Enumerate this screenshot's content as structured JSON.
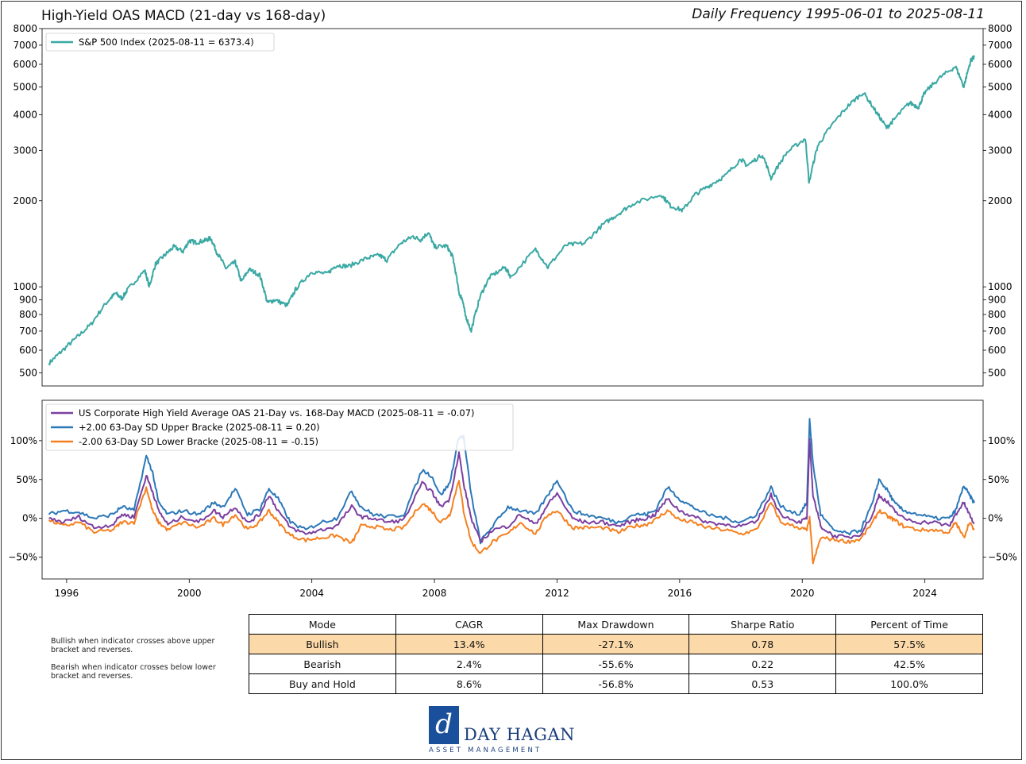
{
  "header": {
    "title": "High-Yield OAS MACD (21-day vs 168-day)",
    "subtitle": "Daily Frequency 1995-06-01 to 2025-08-11"
  },
  "chart_data": [
    {
      "type": "line",
      "scale": "log",
      "ylim": [
        450,
        8000
      ],
      "y_ticks": [
        500,
        600,
        700,
        800,
        900,
        1000,
        2000,
        3000,
        4000,
        5000,
        6000,
        7000,
        8000
      ],
      "xlim": [
        1995.2,
        2025.9
      ],
      "legend_position": "top-left",
      "color": "#3aa8a3",
      "series": [
        {
          "name": "S&P 500 Index (2025-08-11 = 6373.4)",
          "x": [
            1995.42,
            1995.8,
            1996.3,
            1996.8,
            1997.3,
            1997.6,
            1997.8,
            1998.0,
            1998.55,
            1998.7,
            1998.9,
            1999.2,
            1999.5,
            1999.8,
            2000.0,
            2000.2,
            2000.5,
            2000.7,
            2000.9,
            2001.2,
            2001.5,
            2001.7,
            2001.95,
            2002.3,
            2002.55,
            2002.8,
            2003.2,
            2003.5,
            2004.0,
            2004.5,
            2004.8,
            2005.2,
            2005.8,
            2006.2,
            2006.45,
            2006.9,
            2007.3,
            2007.55,
            2007.8,
            2008.0,
            2008.4,
            2008.6,
            2008.8,
            2008.92,
            2009.0,
            2009.2,
            2009.5,
            2009.8,
            2010.3,
            2010.5,
            2011.3,
            2011.7,
            2012.3,
            2012.9,
            2013.5,
            2014.0,
            2014.5,
            2015.4,
            2015.7,
            2016.1,
            2016.5,
            2017.0,
            2017.5,
            2018.0,
            2018.2,
            2018.7,
            2018.98,
            2019.5,
            2020.1,
            2020.22,
            2020.5,
            2020.9,
            2021.5,
            2021.99,
            2022.4,
            2022.75,
            2023.0,
            2023.5,
            2023.8,
            2024.0,
            2024.5,
            2025.0,
            2025.27,
            2025.5,
            2025.61
          ],
          "y": [
            540,
            590,
            660,
            740,
            880,
            950,
            910,
            980,
            1140,
            1000,
            1200,
            1290,
            1380,
            1330,
            1450,
            1430,
            1450,
            1480,
            1320,
            1160,
            1220,
            1040,
            1150,
            1100,
            880,
            900,
            860,
            990,
            1130,
            1110,
            1190,
            1180,
            1260,
            1290,
            1240,
            1420,
            1500,
            1460,
            1550,
            1380,
            1390,
            1270,
            950,
            900,
            800,
            700,
            930,
            1080,
            1170,
            1080,
            1350,
            1170,
            1400,
            1420,
            1650,
            1800,
            1960,
            2100,
            1920,
            1850,
            2100,
            2270,
            2450,
            2800,
            2650,
            2900,
            2400,
            2950,
            3300,
            2300,
            3100,
            3600,
            4300,
            4780,
            4100,
            3600,
            3850,
            4400,
            4250,
            4780,
            5400,
            5900,
            5000,
            6200,
            6373
          ]
        }
      ]
    },
    {
      "type": "line",
      "ylim": [
        -0.78,
        1.52
      ],
      "y_ticks": [
        -0.5,
        0,
        0.5,
        1.0
      ],
      "y_tick_labels": [
        "−50%",
        "0%",
        "50%",
        "100%"
      ],
      "xlim": [
        1995.2,
        2025.9
      ],
      "x_ticks": [
        1996,
        2000,
        2004,
        2008,
        2012,
        2016,
        2020,
        2024
      ],
      "legend_position": "top-left",
      "series": [
        {
          "name": "US Corporate High Yield Average OAS 21-Day vs. 168-Day MACD (2025-08-11 = -0.07)",
          "color": "#7b3fa0",
          "x": [
            1995.42,
            1995.9,
            1996.4,
            1996.9,
            1997.5,
            1997.8,
            1998.2,
            1998.6,
            1998.8,
            1999.0,
            1999.3,
            1999.8,
            2000.3,
            2000.8,
            2001.1,
            2001.5,
            2001.9,
            2002.3,
            2002.6,
            2002.9,
            2003.3,
            2003.8,
            2004.3,
            2004.8,
            2005.3,
            2005.6,
            2006.0,
            2006.5,
            2007.0,
            2007.6,
            2007.9,
            2008.2,
            2008.5,
            2008.8,
            2008.95,
            2009.2,
            2009.5,
            2009.9,
            2010.4,
            2010.8,
            2011.3,
            2011.7,
            2012.0,
            2012.5,
            2012.9,
            2013.5,
            2014.0,
            2014.5,
            2014.9,
            2015.2,
            2015.6,
            2016.0,
            2016.4,
            2016.9,
            2017.5,
            2018.0,
            2018.5,
            2018.98,
            2019.3,
            2019.9,
            2020.15,
            2020.24,
            2020.35,
            2020.6,
            2021.0,
            2021.5,
            2021.9,
            2022.3,
            2022.5,
            2022.8,
            2023.0,
            2023.3,
            2023.8,
            2024.3,
            2024.8,
            2025.0,
            2025.27,
            2025.45,
            2025.61
          ],
          "y": [
            0.0,
            -0.05,
            0.02,
            -0.12,
            -0.08,
            0.05,
            0.02,
            0.55,
            0.35,
            0.1,
            -0.08,
            0.02,
            -0.05,
            0.1,
            0.02,
            0.15,
            -0.06,
            0.05,
            0.3,
            0.1,
            -0.12,
            -0.2,
            -0.15,
            -0.1,
            0.15,
            0.02,
            0.0,
            -0.05,
            -0.02,
            0.45,
            0.35,
            0.15,
            0.25,
            0.85,
            0.45,
            0.0,
            -0.3,
            -0.15,
            -0.1,
            0.05,
            -0.08,
            0.18,
            0.32,
            0.0,
            -0.05,
            -0.05,
            -0.1,
            -0.03,
            0.0,
            0.05,
            0.25,
            0.1,
            0.03,
            -0.05,
            -0.08,
            -0.1,
            -0.05,
            0.3,
            0.05,
            -0.05,
            0.0,
            1.0,
            0.3,
            -0.1,
            -0.22,
            -0.25,
            -0.2,
            0.05,
            0.3,
            0.2,
            0.1,
            0.0,
            -0.05,
            -0.05,
            -0.1,
            0.05,
            0.2,
            0.05,
            -0.07
          ]
        },
        {
          "name": "+2.00 63-Day SD Upper Bracke (2025-08-11 = 0.20)",
          "color": "#2b78b8",
          "x": [
            1995.42,
            1995.9,
            1996.4,
            1996.9,
            1997.5,
            1997.8,
            1998.2,
            1998.6,
            1998.8,
            1999.0,
            1999.3,
            1999.8,
            2000.3,
            2000.8,
            2001.1,
            2001.5,
            2001.9,
            2002.3,
            2002.6,
            2002.9,
            2003.3,
            2003.8,
            2004.3,
            2004.8,
            2005.3,
            2005.6,
            2006.0,
            2006.5,
            2007.0,
            2007.6,
            2007.9,
            2008.2,
            2008.5,
            2008.8,
            2008.95,
            2009.2,
            2009.5,
            2009.9,
            2010.4,
            2010.8,
            2011.3,
            2011.7,
            2012.0,
            2012.5,
            2012.9,
            2013.5,
            2014.0,
            2014.5,
            2014.9,
            2015.2,
            2015.6,
            2016.0,
            2016.4,
            2016.9,
            2017.5,
            2018.0,
            2018.5,
            2018.98,
            2019.3,
            2019.9,
            2020.15,
            2020.24,
            2020.35,
            2020.6,
            2021.0,
            2021.5,
            2021.9,
            2022.3,
            2022.5,
            2022.8,
            2023.0,
            2023.3,
            2023.8,
            2024.3,
            2024.8,
            2025.0,
            2025.27,
            2025.45,
            2025.61
          ],
          "y": [
            0.05,
            0.1,
            0.08,
            0.0,
            0.05,
            0.15,
            0.1,
            0.8,
            0.6,
            0.2,
            0.05,
            0.1,
            0.05,
            0.2,
            0.15,
            0.38,
            0.05,
            0.12,
            0.38,
            0.25,
            -0.05,
            -0.15,
            -0.05,
            0.0,
            0.35,
            0.15,
            0.05,
            0.02,
            0.05,
            0.62,
            0.55,
            0.3,
            0.45,
            1.05,
            1.05,
            0.3,
            -0.3,
            -0.1,
            0.15,
            0.1,
            0.05,
            0.3,
            0.5,
            0.1,
            0.05,
            0.0,
            -0.05,
            0.05,
            0.05,
            0.1,
            0.4,
            0.25,
            0.15,
            0.05,
            0.0,
            -0.05,
            0.05,
            0.4,
            0.15,
            0.05,
            0.2,
            1.28,
            0.7,
            0.05,
            -0.15,
            -0.2,
            -0.15,
            0.2,
            0.5,
            0.35,
            0.2,
            0.1,
            0.05,
            0.0,
            0.0,
            0.1,
            0.42,
            0.3,
            0.2
          ]
        },
        {
          "name": "-2.00 63-Day SD Lower Bracke (2025-08-11 = -0.15)",
          "color": "#f5801f",
          "x": [
            1995.42,
            1995.9,
            1996.4,
            1996.9,
            1997.5,
            1997.8,
            1998.2,
            1998.6,
            1998.8,
            1999.0,
            1999.3,
            1999.8,
            2000.3,
            2000.8,
            2001.1,
            2001.5,
            2001.9,
            2002.3,
            2002.6,
            2002.9,
            2003.3,
            2003.8,
            2004.3,
            2004.8,
            2005.3,
            2005.6,
            2006.0,
            2006.5,
            2007.0,
            2007.6,
            2007.9,
            2008.2,
            2008.5,
            2008.8,
            2008.95,
            2009.2,
            2009.5,
            2009.9,
            2010.4,
            2010.8,
            2011.3,
            2011.7,
            2012.0,
            2012.5,
            2012.9,
            2013.5,
            2014.0,
            2014.5,
            2014.9,
            2015.2,
            2015.6,
            2016.0,
            2016.4,
            2016.9,
            2017.5,
            2018.0,
            2018.5,
            2018.98,
            2019.3,
            2019.9,
            2020.15,
            2020.24,
            2020.35,
            2020.6,
            2021.0,
            2021.5,
            2021.9,
            2022.3,
            2022.5,
            2022.8,
            2023.0,
            2023.3,
            2023.8,
            2024.3,
            2024.8,
            2025.0,
            2025.27,
            2025.45,
            2025.61
          ],
          "y": [
            -0.02,
            -0.1,
            -0.05,
            -0.18,
            -0.15,
            -0.05,
            -0.05,
            0.4,
            0.1,
            -0.05,
            -0.15,
            -0.05,
            -0.12,
            0.0,
            -0.08,
            0.05,
            -0.15,
            -0.05,
            0.1,
            -0.05,
            -0.22,
            -0.28,
            -0.25,
            -0.22,
            -0.32,
            -0.1,
            -0.1,
            -0.15,
            -0.12,
            0.2,
            0.1,
            -0.05,
            0.05,
            0.5,
            0.1,
            -0.3,
            -0.45,
            -0.3,
            -0.2,
            -0.05,
            -0.2,
            0.05,
            0.1,
            -0.12,
            -0.12,
            -0.12,
            -0.18,
            -0.1,
            -0.08,
            -0.02,
            0.1,
            -0.02,
            -0.05,
            -0.12,
            -0.15,
            -0.2,
            -0.15,
            0.2,
            -0.05,
            -0.12,
            -0.15,
            0.0,
            -0.58,
            -0.25,
            -0.27,
            -0.3,
            -0.27,
            -0.05,
            0.1,
            0.02,
            -0.02,
            -0.1,
            -0.15,
            -0.15,
            -0.18,
            -0.05,
            -0.25,
            -0.05,
            -0.15
          ]
        }
      ]
    }
  ],
  "notes": [
    "Bullish when indicator crosses above upper bracket and reverses.",
    "Bearish when indicator crosses below lower bracket and reverses."
  ],
  "stats_table": {
    "columns": [
      "Mode",
      "CAGR",
      "Max Drawdown",
      "Sharpe Ratio",
      "Percent of Time"
    ],
    "rows": [
      [
        "Bullish",
        "13.4%",
        "-27.1%",
        "0.78",
        "57.5%"
      ],
      [
        "Bearish",
        "2.4%",
        "-55.6%",
        "0.22",
        "42.5%"
      ],
      [
        "Buy and Hold",
        "8.6%",
        "-56.8%",
        "0.53",
        "100.0%"
      ]
    ],
    "highlight_row": 0,
    "highlight_color": "#fcd9a8"
  },
  "logo": {
    "mark": "d",
    "name": "DAY HAGAN",
    "tagline": "ASSET MANAGEMENT",
    "color": "#1a4f9c"
  }
}
